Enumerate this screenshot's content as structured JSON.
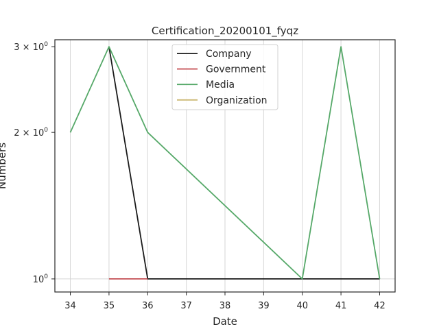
{
  "chart_data": {
    "type": "line",
    "title": "Certification_20200101_fyqz",
    "xlabel": "Date",
    "ylabel": "Numbers",
    "y_scale": "log",
    "grid": "vertical and major horizontal",
    "legend_position": "upper-center",
    "x_ticks": [
      "34",
      "35",
      "36",
      "37",
      "38",
      "39",
      "40",
      "41",
      "42"
    ],
    "y_ticks": [
      {
        "value": 1,
        "base": "10",
        "exp": "0",
        "coef": ""
      },
      {
        "value": 2,
        "base": "10",
        "exp": "0",
        "coef": "2 × "
      },
      {
        "value": 3,
        "base": "10",
        "exp": "0",
        "coef": "3 × "
      }
    ],
    "xlim": [
      33.6,
      42.4
    ],
    "ylim": [
      0.94,
      3.1
    ],
    "series": [
      {
        "name": "Company",
        "color": "#1a1a1a",
        "x": [
          35,
          36,
          37,
          38,
          39,
          40,
          41,
          42
        ],
        "y": [
          3,
          1,
          1,
          1,
          1,
          1,
          1,
          1
        ]
      },
      {
        "name": "Government",
        "color": "#c44e52",
        "x": [
          35,
          36
        ],
        "y": [
          1,
          1
        ]
      },
      {
        "name": "Media",
        "color": "#55a868",
        "x": [
          34,
          35,
          36,
          40,
          41,
          42
        ],
        "y": [
          2,
          3,
          2,
          1,
          3,
          1
        ]
      },
      {
        "name": "Organization",
        "color": "#ccb974",
        "x": [],
        "y": []
      }
    ]
  }
}
